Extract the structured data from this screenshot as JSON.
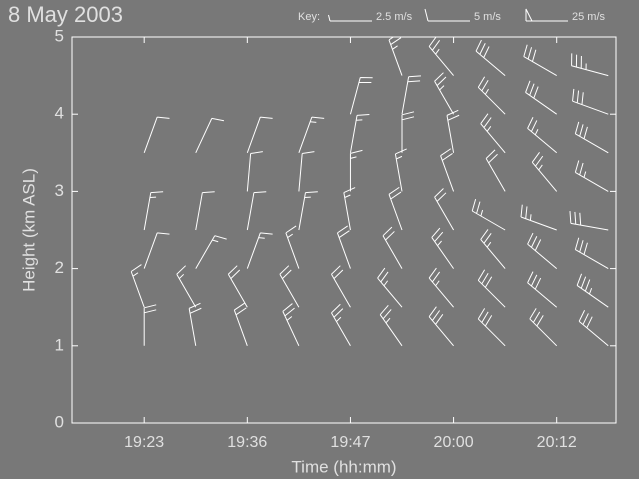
{
  "chart_data": {
    "type": "barbs",
    "title": "8 May 2003",
    "xlabel": "Time (hh:mm)",
    "ylabel": "Height (km ASL)",
    "key_title": "Key:",
    "key": [
      {
        "value": 2.5,
        "label": "2.5 m/s"
      },
      {
        "value": 5,
        "label": "5 m/s"
      },
      {
        "value": 25,
        "label": "25 m/s"
      }
    ],
    "xlim": [
      -1.4,
      9.15
    ],
    "xticks": [
      {
        "value": 0,
        "label": "19:23"
      },
      {
        "value": 2,
        "label": "19:36"
      },
      {
        "value": 4,
        "label": "19:47"
      },
      {
        "value": 6,
        "label": "20:00"
      },
      {
        "value": 8,
        "label": "20:12"
      }
    ],
    "ylim": [
      0,
      5
    ],
    "yticks": [
      0,
      1,
      2,
      3,
      4,
      5
    ],
    "color": "#ffffff",
    "profiles": [
      {
        "x": 0,
        "heights": [
          1,
          1.5,
          2,
          2.5,
          3.5
        ],
        "speed": [
          10,
          7.5,
          5,
          7.5,
          5
        ],
        "direction": [
          0,
          340,
          20,
          10,
          20
        ]
      },
      {
        "x": 1,
        "heights": [
          1,
          1.5,
          2,
          2.5,
          3.5
        ],
        "speed": [
          10,
          7.5,
          7.5,
          5,
          5
        ],
        "direction": [
          350,
          330,
          30,
          10,
          25
        ]
      },
      {
        "x": 2,
        "heights": [
          1,
          1.5,
          2,
          2.5,
          3,
          3.5
        ],
        "speed": [
          10,
          10,
          7.5,
          5,
          5,
          5
        ],
        "direction": [
          340,
          330,
          20,
          10,
          5,
          20
        ]
      },
      {
        "x": 3,
        "heights": [
          1,
          1.5,
          2,
          2.5,
          3,
          3.5
        ],
        "speed": [
          12.5,
          10,
          7.5,
          7.5,
          5,
          7.5
        ],
        "direction": [
          335,
          330,
          340,
          10,
          5,
          20
        ]
      },
      {
        "x": 4,
        "heights": [
          1,
          1.5,
          2,
          2.5,
          3,
          3.5,
          4
        ],
        "speed": [
          12.5,
          10,
          10,
          7.5,
          7.5,
          7.5,
          10
        ],
        "direction": [
          330,
          330,
          340,
          350,
          0,
          10,
          15
        ]
      },
      {
        "x": 5,
        "heights": [
          1,
          1.5,
          2,
          2.5,
          3,
          3.5,
          4,
          4.5,
          5
        ],
        "speed": [
          12.5,
          12.5,
          10,
          10,
          7.5,
          10,
          10,
          12.5,
          12.5
        ],
        "direction": [
          325,
          320,
          330,
          340,
          350,
          0,
          10,
          340,
          330
        ]
      },
      {
        "x": 6,
        "heights": [
          1,
          1.5,
          2,
          2.5,
          3,
          3.5,
          4,
          4.5,
          5
        ],
        "speed": [
          15,
          12.5,
          12.5,
          10,
          10,
          10,
          12.5,
          12.5,
          15
        ],
        "direction": [
          320,
          320,
          325,
          330,
          340,
          350,
          330,
          320,
          320
        ]
      },
      {
        "x": 7,
        "heights": [
          1,
          1.5,
          2,
          2.5,
          3,
          3.5,
          4,
          4.5,
          5
        ],
        "speed": [
          15,
          15,
          12.5,
          12.5,
          10,
          12.5,
          12.5,
          15,
          15
        ],
        "direction": [
          315,
          315,
          320,
          300,
          330,
          320,
          315,
          310,
          300
        ]
      },
      {
        "x": 8,
        "heights": [
          1,
          1.5,
          2,
          2.5,
          3,
          3.5,
          4,
          4.5,
          5
        ],
        "speed": [
          15,
          15,
          15,
          12.5,
          12.5,
          12.5,
          15,
          15,
          17.5
        ],
        "direction": [
          315,
          310,
          310,
          290,
          320,
          310,
          305,
          300,
          290
        ]
      },
      {
        "x": 9,
        "heights": [
          1,
          1.5,
          2,
          2.5,
          3,
          3.5,
          4,
          4.5,
          5
        ],
        "speed": [
          15,
          17.5,
          15,
          15,
          12.5,
          15,
          15,
          17.5,
          17.5
        ],
        "direction": [
          310,
          305,
          300,
          280,
          300,
          300,
          290,
          285,
          280
        ]
      }
    ]
  }
}
